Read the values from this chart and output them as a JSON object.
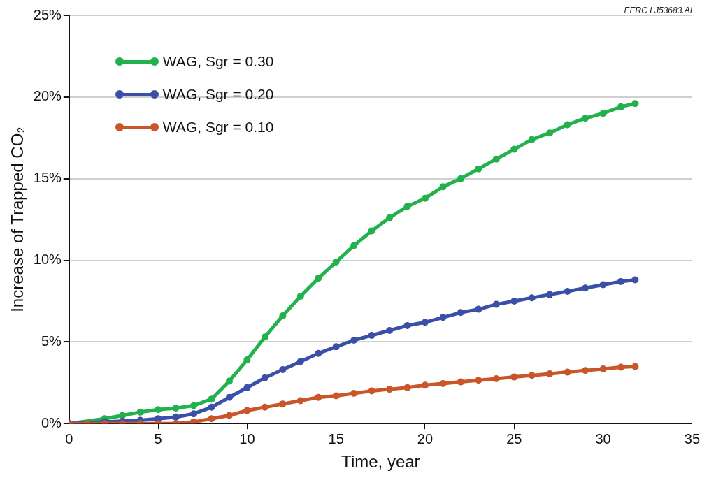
{
  "chart_data": {
    "type": "line",
    "xlabel": "Time, year",
    "ylabel": "Increase of Trapped CO₂",
    "annotations": [
      "EERC LJ53683.AI"
    ],
    "xlim": [
      0,
      35
    ],
    "xticks": [
      0,
      5,
      10,
      15,
      20,
      25,
      30,
      35
    ],
    "ylim": [
      0,
      25
    ],
    "yticks": [
      {
        "value": 0,
        "label": "0%"
      },
      {
        "value": 5,
        "label": "5%"
      },
      {
        "value": 10,
        "label": "10%"
      },
      {
        "value": 15,
        "label": "15%"
      },
      {
        "value": 20,
        "label": "20%"
      },
      {
        "value": 25,
        "label": "25%"
      }
    ],
    "grid": "y",
    "legend": "top left",
    "marker": "circle",
    "line_style": "solid",
    "x": [
      0,
      1,
      2,
      3,
      4,
      5,
      6,
      7,
      8,
      9,
      10,
      11,
      12,
      13,
      14,
      15,
      16,
      17,
      18,
      19,
      20,
      21,
      22,
      23,
      24,
      25,
      26,
      27,
      28,
      29,
      30,
      31,
      31.8
    ],
    "series": [
      {
        "name": "WAG, Sgr = 0.30",
        "color": "#22b14c",
        "values": [
          0,
          null,
          0.3,
          0.5,
          0.7,
          0.85,
          0.95,
          1.1,
          1.5,
          2.6,
          3.9,
          5.3,
          6.6,
          7.8,
          8.9,
          9.9,
          10.9,
          11.8,
          12.6,
          13.3,
          13.8,
          14.5,
          15.0,
          15.6,
          16.2,
          16.8,
          17.4,
          17.8,
          18.3,
          18.7,
          19.0,
          19.4,
          19.6
        ]
      },
      {
        "name": "WAG, Sgr = 0.20",
        "color": "#3b4fa8",
        "values": [
          0,
          null,
          0.1,
          0.15,
          0.2,
          0.3,
          0.4,
          0.6,
          1.0,
          1.6,
          2.2,
          2.8,
          3.3,
          3.8,
          4.3,
          4.7,
          5.1,
          5.4,
          5.7,
          6.0,
          6.2,
          6.5,
          6.8,
          7.0,
          7.3,
          7.5,
          7.7,
          7.9,
          8.1,
          8.3,
          8.5,
          8.7,
          8.8
        ]
      },
      {
        "name": "WAG, Sgr = 0.10",
        "color": "#c8562a",
        "values": [
          0,
          0,
          0,
          0,
          0,
          0,
          0,
          0.1,
          0.3,
          0.5,
          0.8,
          1.0,
          1.2,
          1.4,
          1.6,
          1.7,
          1.85,
          2.0,
          2.1,
          2.2,
          2.35,
          2.45,
          2.55,
          2.65,
          2.75,
          2.85,
          2.95,
          3.05,
          3.15,
          3.25,
          3.35,
          3.45,
          3.5
        ]
      }
    ]
  }
}
